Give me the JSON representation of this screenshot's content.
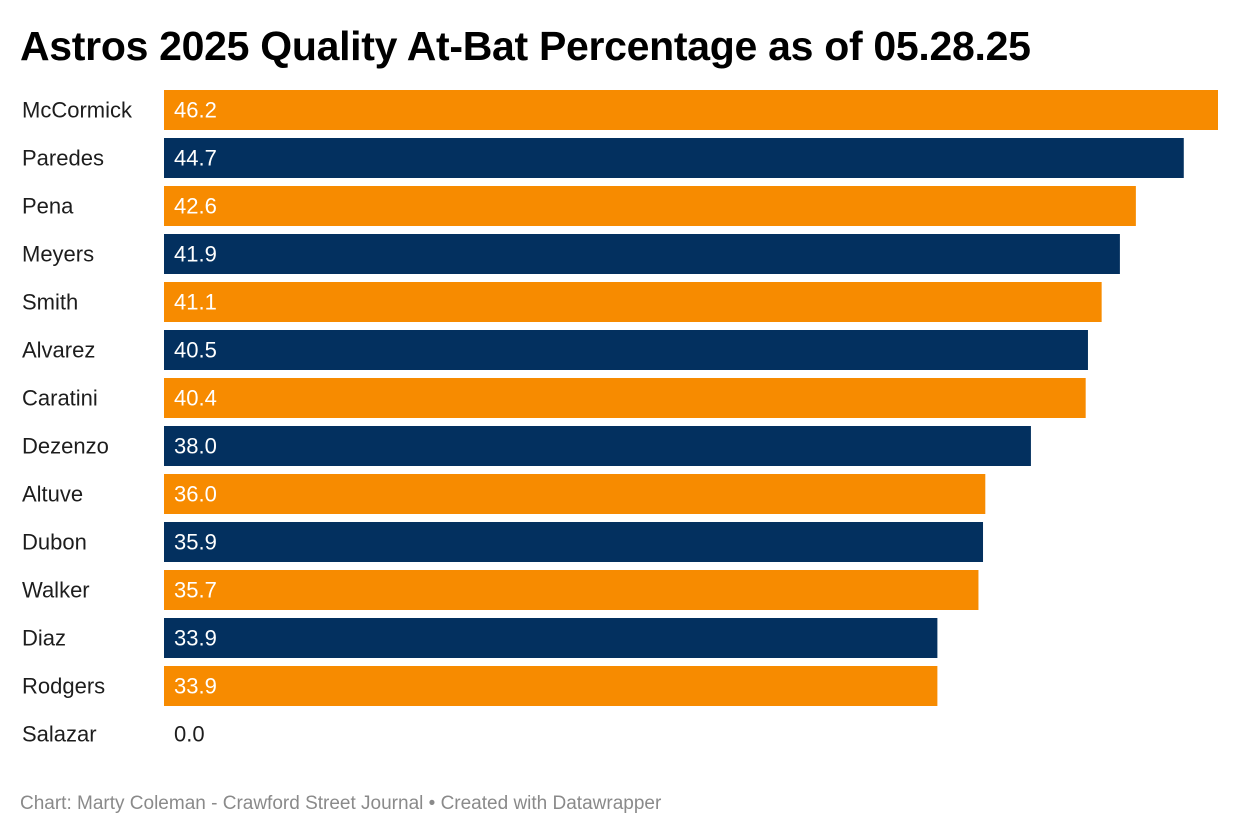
{
  "chart_data": {
    "type": "bar",
    "orientation": "horizontal",
    "title": "Astros 2025 Quality At-Bat Percentage as of 05.28.25",
    "categories": [
      "McCormick",
      "Paredes",
      "Pena",
      "Meyers",
      "Smith",
      "Alvarez",
      "Caratini",
      "Dezenzo",
      "Altuve",
      "Dubon",
      "Walker",
      "Diaz",
      "Rodgers",
      "Salazar"
    ],
    "values": [
      46.2,
      44.7,
      42.6,
      41.9,
      41.1,
      40.5,
      40.4,
      38.0,
      36.0,
      35.9,
      35.7,
      33.9,
      33.9,
      0.0
    ],
    "value_labels": [
      "46.2",
      "44.7",
      "42.6",
      "41.9",
      "41.1",
      "40.5",
      "40.4",
      "38.0",
      "36.0",
      "35.9",
      "35.7",
      "33.9",
      "33.9",
      "0.0"
    ],
    "xlim": [
      0,
      46.2
    ],
    "grid": false,
    "legend": "none",
    "bar_colors": [
      "#f78b00",
      "#03305f"
    ],
    "value_label_color_inside": "#ffffff",
    "value_label_color_outside": "#1d1d1d"
  },
  "footer": {
    "credit": "Chart: Marty Coleman - Crawford Street Journal • Created with Datawrapper"
  }
}
